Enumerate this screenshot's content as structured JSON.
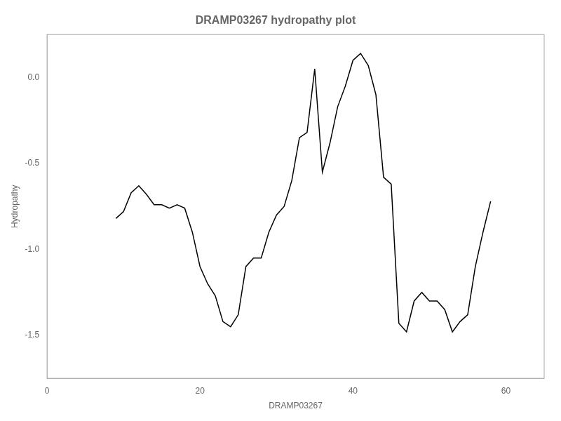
{
  "chart_data": {
    "type": "line",
    "title": "DRAMP03267 hydropathy plot",
    "xlabel": "DRAMP03267",
    "ylabel": "Hydropathy",
    "xlim": [
      0,
      65
    ],
    "ylim": [
      -1.75,
      0.25
    ],
    "xticks": [
      0,
      20,
      40,
      60
    ],
    "yticks": [
      {
        "value": 0,
        "label": "0.0"
      },
      -0.5,
      {
        "value": -1,
        "label": "-1.0"
      },
      -1.5
    ],
    "color": "#000000",
    "grid": false,
    "x": [
      9,
      10,
      11,
      12,
      13,
      14,
      15,
      16,
      17,
      18,
      19,
      20,
      21,
      22,
      23,
      24,
      25,
      26,
      27,
      28,
      29,
      30,
      31,
      32,
      33,
      34,
      35,
      36,
      37,
      38,
      39,
      40,
      41,
      42,
      43,
      44,
      45,
      46,
      47,
      48,
      49,
      50,
      51,
      52,
      53,
      54,
      55,
      56,
      57,
      58
    ],
    "values": [
      -0.82,
      -0.78,
      -0.67,
      -0.63,
      -0.68,
      -0.74,
      -0.74,
      -0.76,
      -0.74,
      -0.76,
      -0.9,
      -1.1,
      -1.2,
      -1.27,
      -1.42,
      -1.45,
      -1.38,
      -1.1,
      -1.05,
      -1.05,
      -0.9,
      -0.8,
      -0.75,
      -0.6,
      -0.35,
      -0.32,
      0.05,
      -0.55,
      -0.38,
      -0.17,
      -0.05,
      0.1,
      0.14,
      0.07,
      -0.1,
      -0.58,
      -0.62,
      -1.43,
      -1.48,
      -1.3,
      -1.25,
      -1.3,
      -1.3,
      -1.35,
      -1.48,
      -1.42,
      -1.38,
      -1.1,
      -0.9,
      -0.72
    ]
  }
}
